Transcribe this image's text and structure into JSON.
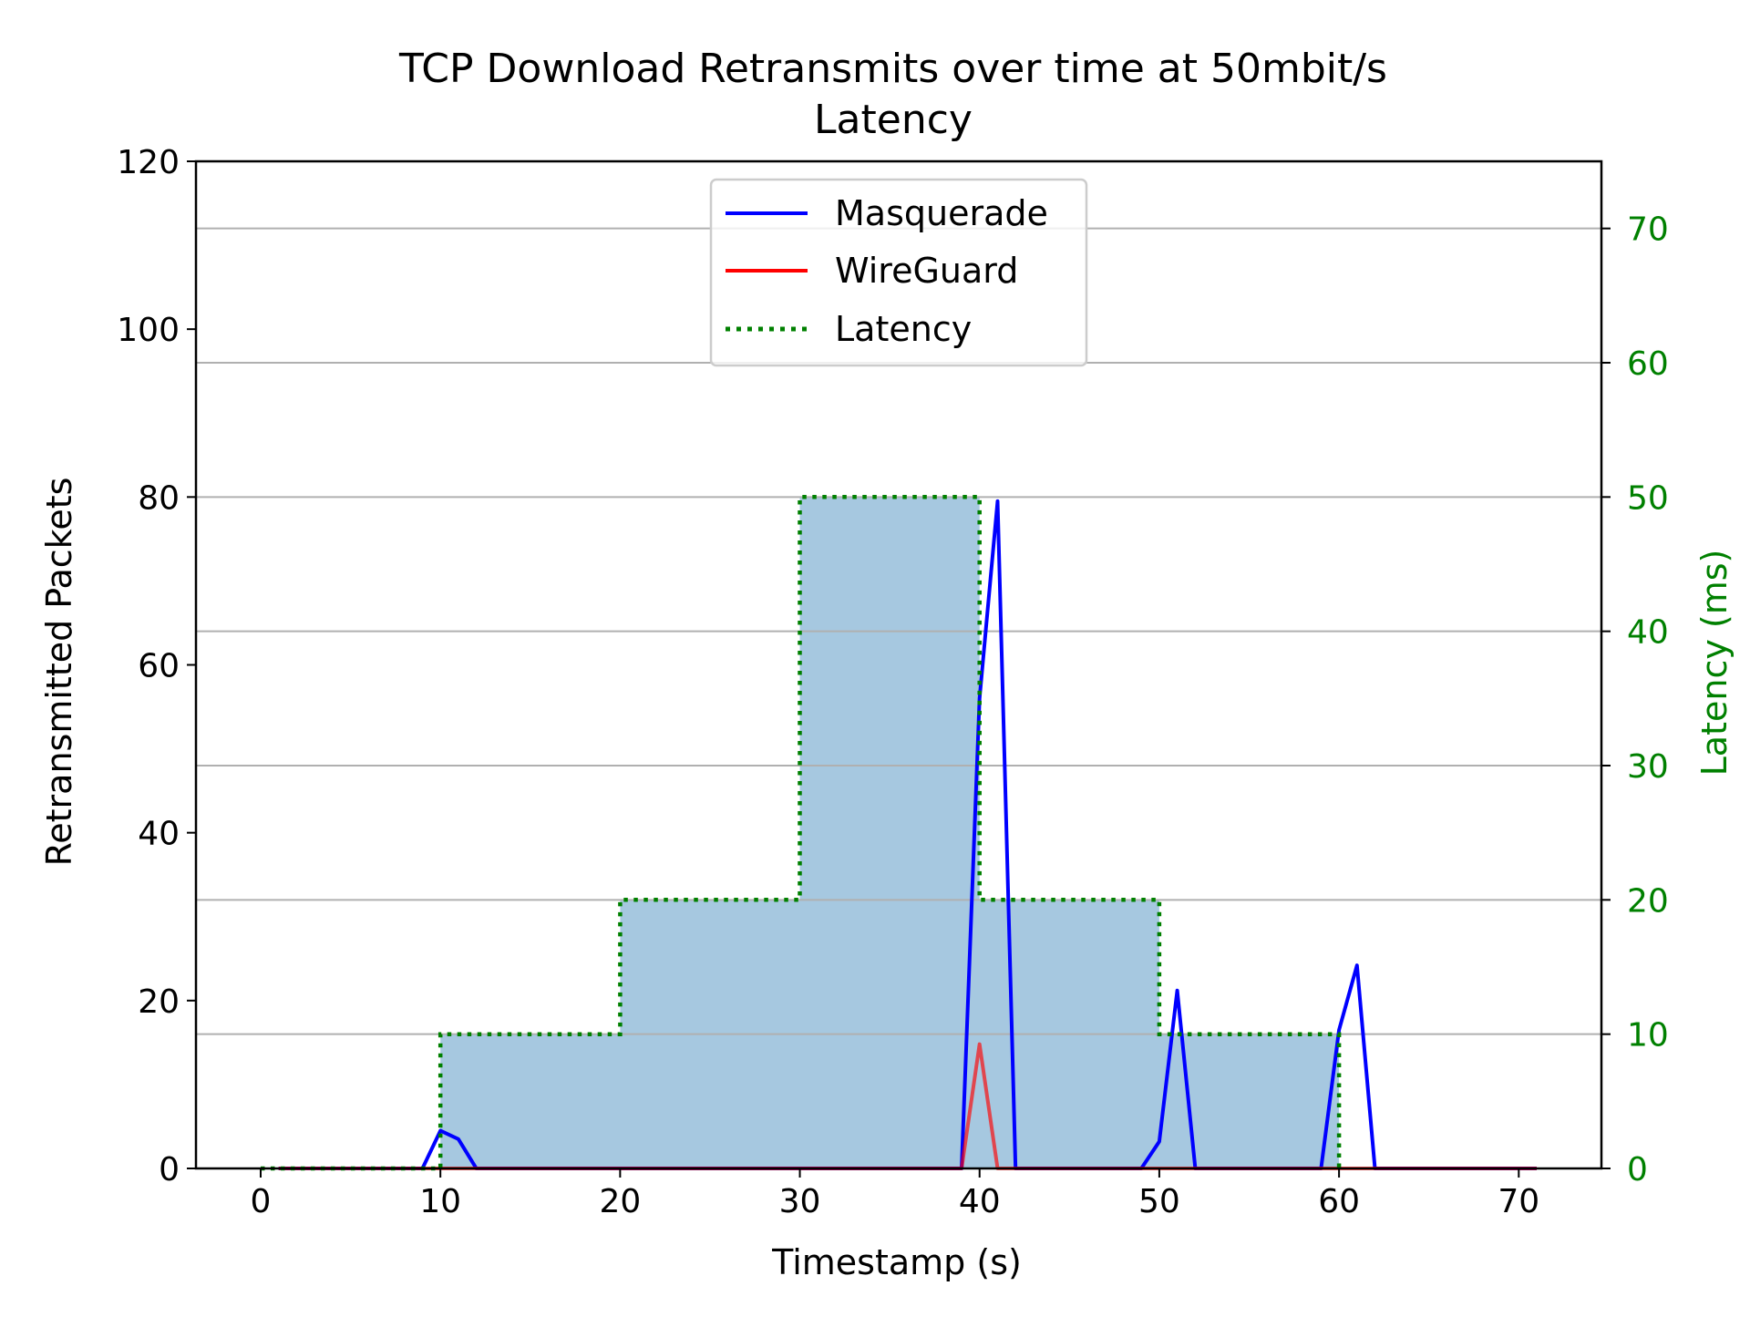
{
  "chart_data": {
    "type": "line",
    "title": "TCP Download Retransmits over time at 50mbit/s",
    "subtitle": "Latency",
    "xlabel": "Timestamp (s)",
    "ylabel": "Retransmitted Packets",
    "y2label": "Latency (ms)",
    "xlim": [
      -3.6,
      74.6
    ],
    "ylim": [
      0,
      120
    ],
    "y2lim": [
      0,
      75
    ],
    "x_ticks": [
      0,
      10,
      20,
      30,
      40,
      50,
      60,
      70
    ],
    "y_ticks": [
      0,
      20,
      40,
      60,
      80,
      100,
      120
    ],
    "y2_ticks": [
      0,
      10,
      20,
      30,
      40,
      50,
      60,
      70
    ],
    "grid": "horizontal on right axis",
    "legend_position": "top-center",
    "colors": {
      "masquerade": "#0000ff",
      "wireguard": "#ff0000",
      "latency": "#008000",
      "fill": "#a6c8e0",
      "grid": "#b0b0b0"
    },
    "series": [
      {
        "name": "Masquerade",
        "axis": "left",
        "style": "solid",
        "x": [
          1,
          2,
          3,
          4,
          5,
          6,
          7,
          8,
          9,
          10,
          11,
          12,
          13,
          14,
          15,
          16,
          17,
          18,
          19,
          20,
          21,
          22,
          23,
          24,
          25,
          26,
          27,
          28,
          29,
          30,
          31,
          32,
          33,
          34,
          35,
          36,
          37,
          38,
          39,
          40,
          41,
          42,
          43,
          44,
          45,
          46,
          47,
          48,
          49,
          50,
          51,
          52,
          53,
          54,
          55,
          56,
          57,
          58,
          59,
          60,
          61,
          62,
          63,
          64,
          65,
          66,
          67,
          68,
          69,
          70,
          71
        ],
        "values": [
          0,
          0,
          0,
          0,
          0,
          0,
          0,
          0,
          0,
          4.5,
          3.5,
          0,
          0,
          0,
          0,
          0,
          0,
          0,
          0,
          0,
          0,
          0,
          0,
          0,
          0,
          0,
          0,
          0,
          0,
          0,
          0,
          0,
          0,
          0,
          0,
          0,
          0,
          0,
          0,
          56,
          79.5,
          0,
          0,
          0,
          0,
          0,
          0,
          0,
          0,
          3.2,
          21.2,
          0,
          0,
          0,
          0,
          0,
          0,
          0,
          0,
          16.5,
          24.2,
          0,
          0,
          0,
          0,
          0,
          0,
          0,
          0,
          0,
          0
        ]
      },
      {
        "name": "WireGuard",
        "axis": "left",
        "style": "solid",
        "x": [
          1,
          2,
          3,
          4,
          5,
          6,
          7,
          8,
          9,
          10,
          11,
          12,
          13,
          14,
          15,
          16,
          17,
          18,
          19,
          20,
          21,
          22,
          23,
          24,
          25,
          26,
          27,
          28,
          29,
          30,
          31,
          32,
          33,
          34,
          35,
          36,
          37,
          38,
          39,
          40,
          41,
          42,
          43,
          44,
          45,
          46,
          47,
          48,
          49,
          50,
          51,
          52,
          53,
          54,
          55,
          56,
          57,
          58,
          59,
          60,
          61,
          62,
          63,
          64,
          65,
          66,
          67,
          68,
          69,
          70,
          71
        ],
        "values": [
          0,
          0,
          0,
          0,
          0,
          0,
          0,
          0,
          0,
          0,
          0,
          0,
          0,
          0,
          0,
          0,
          0,
          0,
          0,
          0,
          0,
          0,
          0,
          0,
          0,
          0,
          0,
          0,
          0,
          0,
          0,
          0,
          0,
          0,
          0,
          0,
          0,
          0,
          0,
          14.8,
          0,
          0,
          0,
          0,
          0,
          0,
          0,
          0,
          0,
          0,
          0,
          0,
          0,
          0,
          0,
          0,
          0,
          0,
          0,
          0,
          0,
          0,
          0,
          0,
          0,
          0,
          0,
          0,
          0,
          0,
          0
        ]
      },
      {
        "name": "Latency",
        "axis": "right",
        "style": "dotted-step",
        "x": [
          0,
          10,
          10,
          20,
          20,
          30,
          30,
          40,
          40,
          50,
          50,
          60,
          60
        ],
        "values": [
          0,
          0,
          10,
          10,
          20,
          20,
          50,
          50,
          20,
          20,
          10,
          10,
          0
        ]
      }
    ]
  }
}
